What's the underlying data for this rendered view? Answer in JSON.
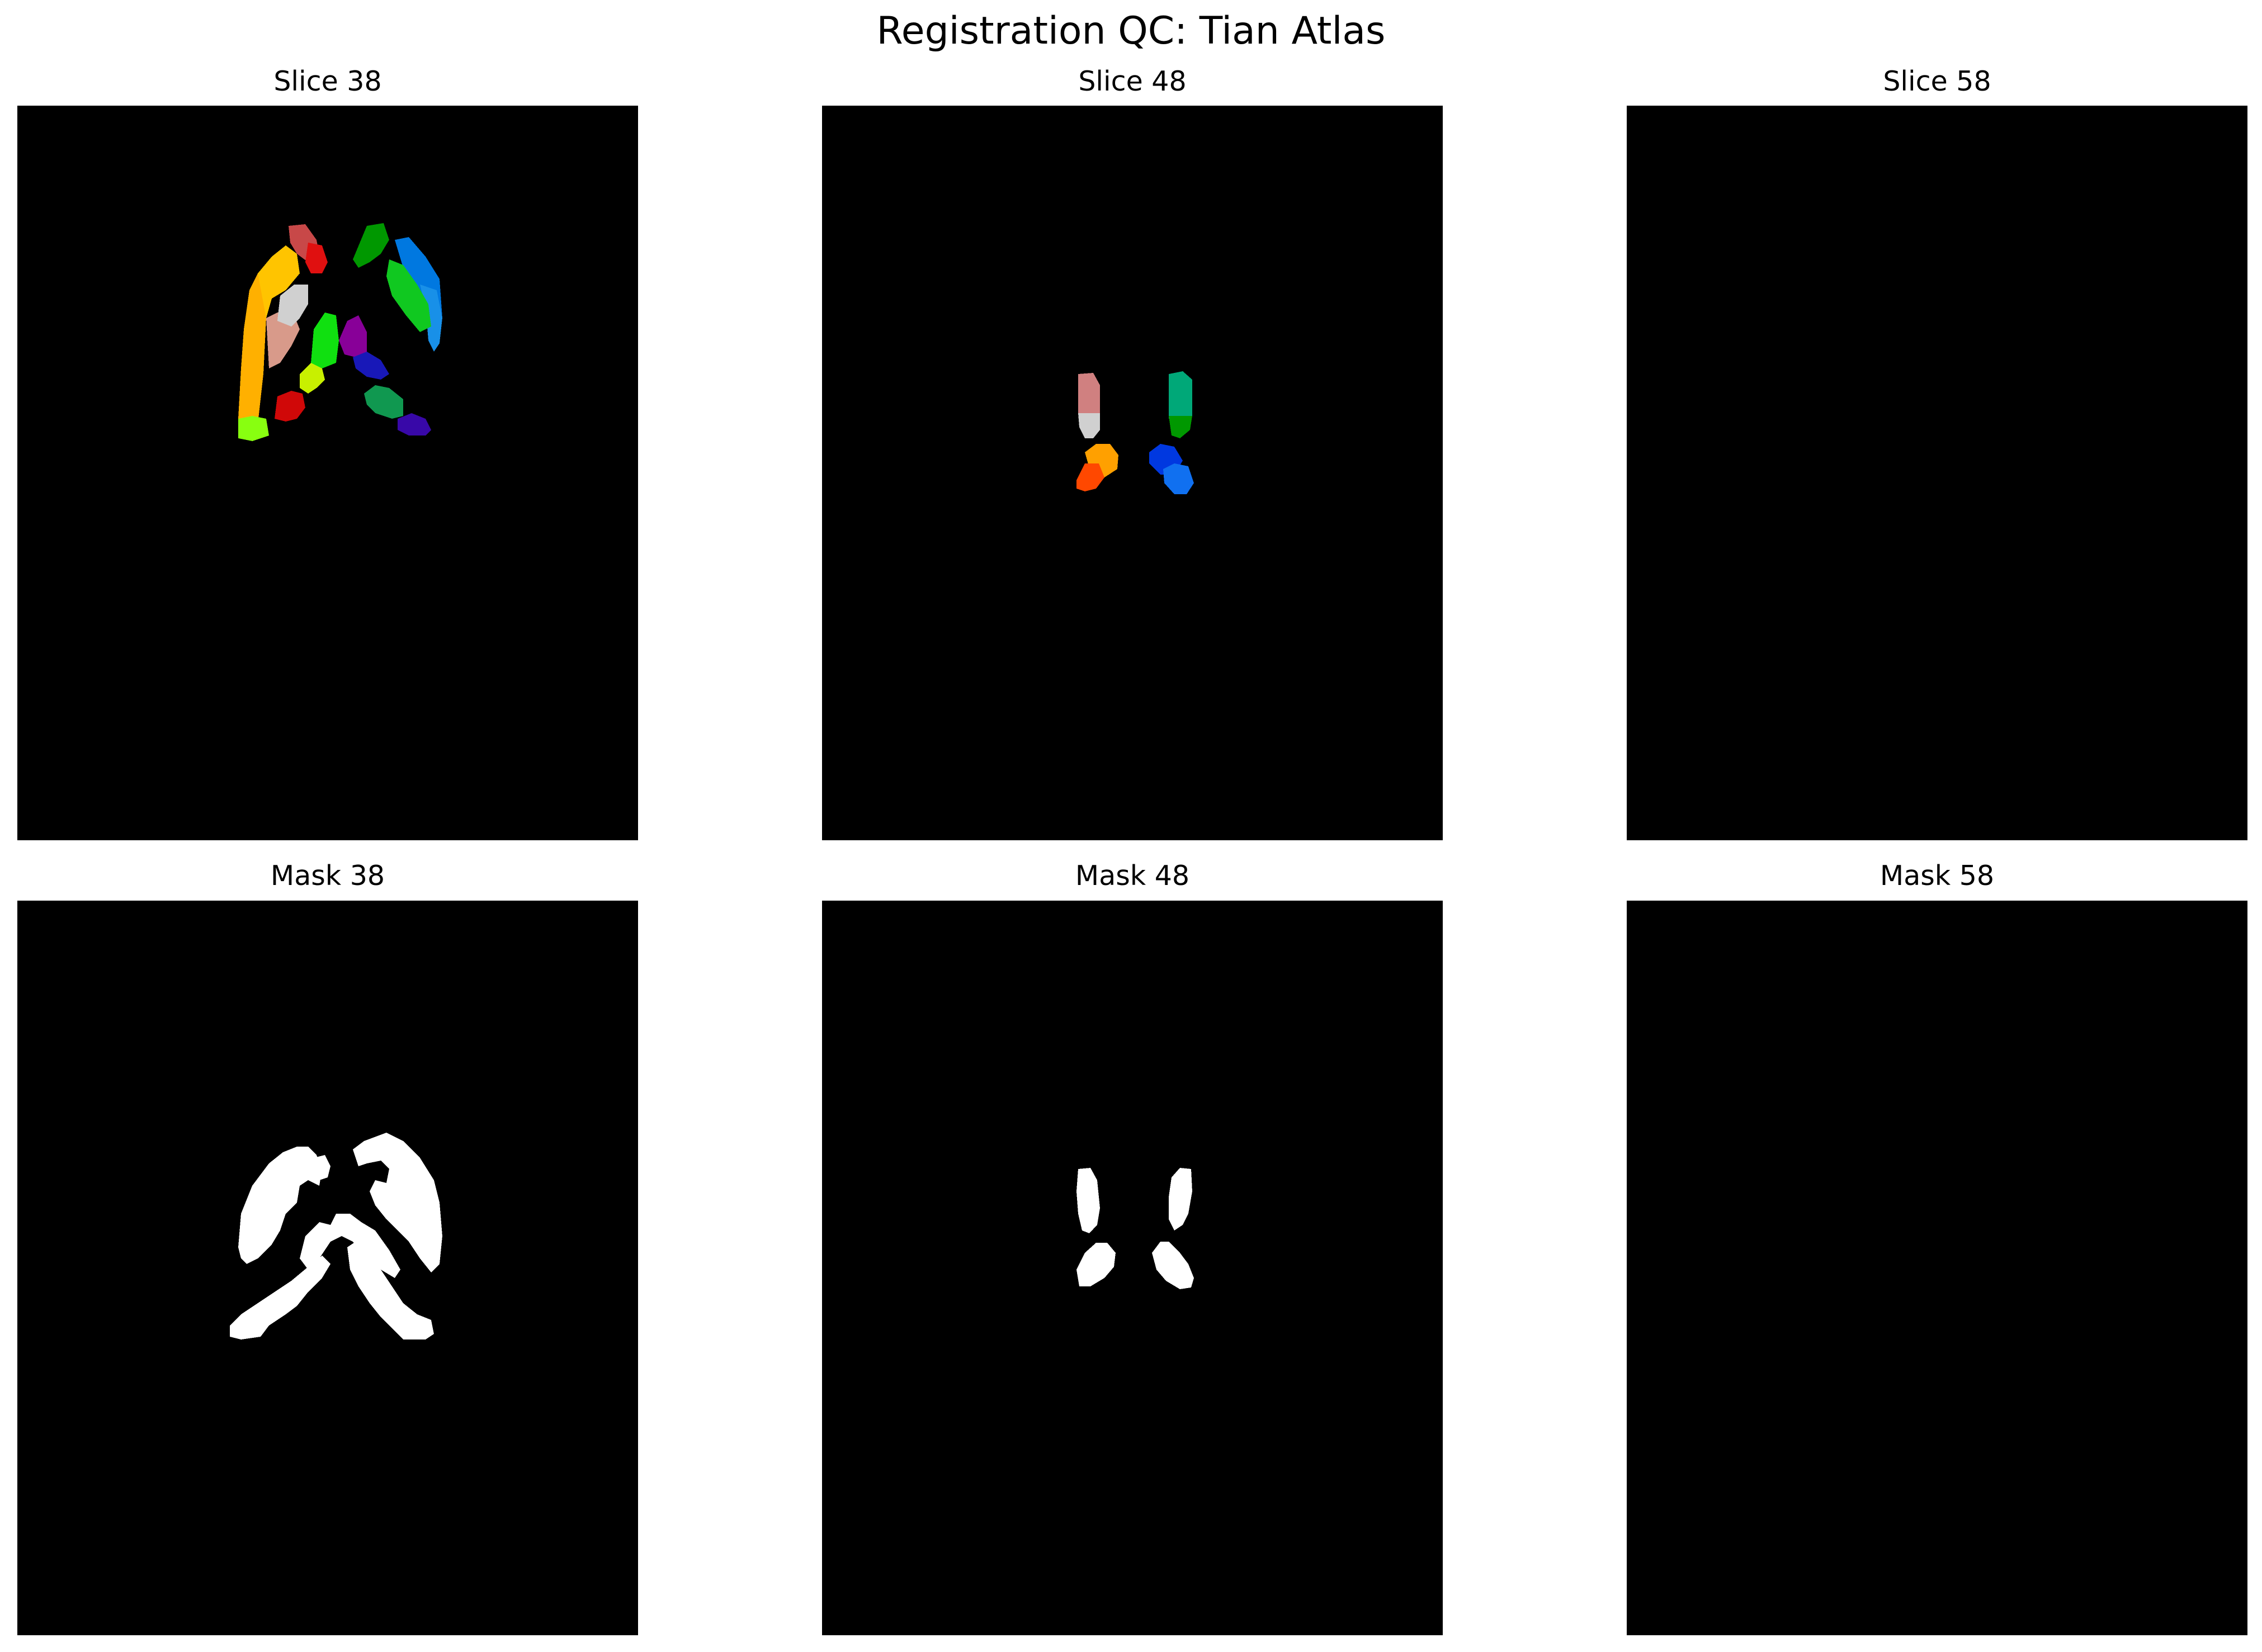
{
  "figure": {
    "title": "Registration QC: Tian Atlas"
  },
  "panels": [
    {
      "title": "Slice 38",
      "kind": "atlas"
    },
    {
      "title": "Slice 48",
      "kind": "atlas"
    },
    {
      "title": "Slice 58",
      "kind": "atlas"
    },
    {
      "title": "Mask 38",
      "kind": "mask"
    },
    {
      "title": "Mask 48",
      "kind": "mask"
    },
    {
      "title": "Mask 58",
      "kind": "mask"
    }
  ],
  "colors": {
    "background": "#000000",
    "mask": "#ffffff",
    "atlas_regions": [
      "#ffb000",
      "#ffc400",
      "#c84848",
      "#e01010",
      "#d89a8a",
      "#d0d0d0",
      "#10e010",
      "#c8f000",
      "#d00808",
      "#88ff10",
      "#009800",
      "#0078e0",
      "#1890e8",
      "#10c820",
      "#880098",
      "#1818b8",
      "#109850",
      "#3808a8",
      "#d08080",
      "#00a878",
      "#ffa000",
      "#ff4800",
      "#0038e0",
      "#1070f0"
    ]
  }
}
